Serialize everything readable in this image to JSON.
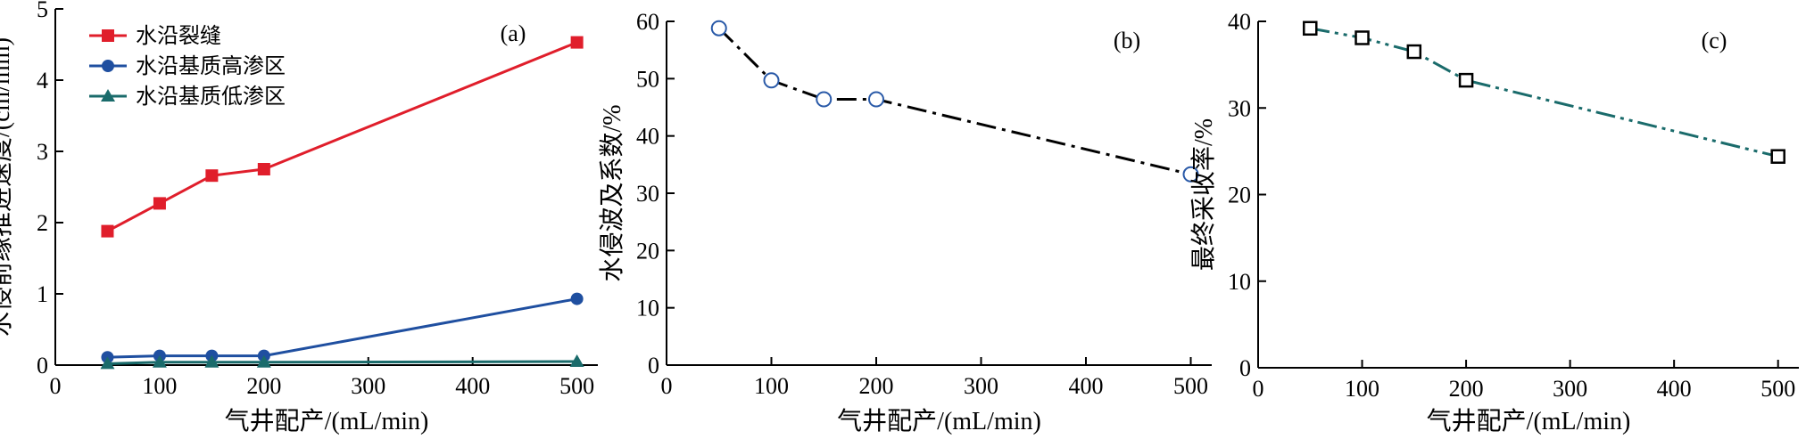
{
  "chart_data": [
    {
      "type": "line",
      "panel_label": "(a)",
      "xlabel": "气井配产/(mL/min)",
      "ylabel": "水侵前缘推进速度/(cm/min)",
      "xlim": [
        0,
        520
      ],
      "ylim": [
        0,
        5
      ],
      "xticks": [
        0,
        100,
        200,
        300,
        400,
        500
      ],
      "yticks": [
        0,
        1,
        2,
        3,
        4,
        5
      ],
      "legend_position": "top-left",
      "series": [
        {
          "name": "水沿裂缝",
          "color": "#e01e2b",
          "marker": "square",
          "line": "solid",
          "x": [
            50,
            100,
            150,
            200,
            500
          ],
          "y": [
            1.88,
            2.27,
            2.66,
            2.75,
            4.53
          ]
        },
        {
          "name": "水沿基质高渗区",
          "color": "#1f4fa0",
          "marker": "circle",
          "line": "solid",
          "x": [
            50,
            100,
            150,
            200,
            500
          ],
          "y": [
            0.11,
            0.13,
            0.13,
            0.13,
            0.93
          ]
        },
        {
          "name": "水沿基质低渗区",
          "color": "#1a6b6b",
          "marker": "triangle",
          "line": "solid",
          "x": [
            50,
            100,
            150,
            200,
            500
          ],
          "y": [
            0.02,
            0.04,
            0.04,
            0.04,
            0.05
          ]
        }
      ]
    },
    {
      "type": "line",
      "panel_label": "(b)",
      "xlabel": "气井配产/(mL/min)",
      "ylabel": "水侵波及系数/%",
      "xlim": [
        0,
        520
      ],
      "ylim": [
        0,
        60
      ],
      "xticks": [
        0,
        100,
        200,
        300,
        400,
        500
      ],
      "yticks": [
        0,
        10,
        20,
        30,
        40,
        50,
        60
      ],
      "series": [
        {
          "name": "",
          "color": "#000000",
          "marker_color": "#2a5aa8",
          "marker": "open-circle",
          "line": "dashdot",
          "x": [
            50,
            100,
            150,
            200,
            500
          ],
          "y": [
            58.8,
            49.7,
            46.4,
            46.4,
            33.3
          ]
        }
      ]
    },
    {
      "type": "line",
      "panel_label": "(c)",
      "xlabel": "气井配产/(mL/min)",
      "ylabel": "最终采收率/%",
      "xlim": [
        0,
        520
      ],
      "ylim": [
        0,
        40
      ],
      "xticks": [
        0,
        100,
        200,
        300,
        400,
        500
      ],
      "yticks": [
        0,
        10,
        20,
        30,
        40
      ],
      "series": [
        {
          "name": "",
          "color": "#1a6b6b",
          "marker_color": "#000000",
          "marker": "open-square",
          "line": "dashdotdot",
          "x": [
            50,
            100,
            150,
            200,
            500
          ],
          "y": [
            39.2,
            38.1,
            36.5,
            33.2,
            24.4
          ]
        }
      ]
    }
  ]
}
